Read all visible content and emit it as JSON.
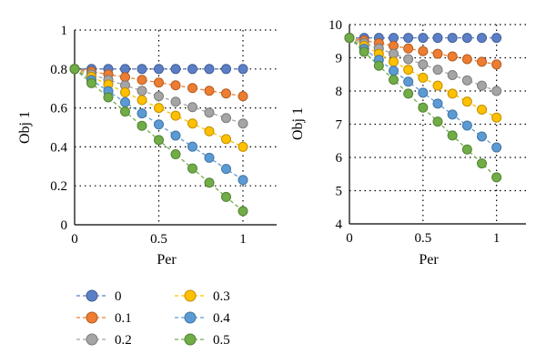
{
  "legend": {
    "placement": "bottom-left",
    "items": [
      {
        "label": "0",
        "color": "#5b7fc7"
      },
      {
        "label": "0.1",
        "color": "#ed7d31"
      },
      {
        "label": "0.2",
        "color": "#a5a5a5"
      },
      {
        "label": "0.3",
        "color": "#ffc000"
      },
      {
        "label": "0.4",
        "color": "#5b9bd5"
      },
      {
        "label": "0.5",
        "color": "#70ad47"
      }
    ]
  },
  "chart_data": [
    {
      "type": "line",
      "xlabel": "Per",
      "ylabel": "Obj 1",
      "xlim": [
        0,
        1.2
      ],
      "ylim": [
        0,
        1
      ],
      "xticks": [
        "0",
        "0.5",
        "1"
      ],
      "xtick_values": [
        0,
        0.5,
        1
      ],
      "yticks": [
        "0",
        "0.2",
        "0.4",
        "0.6",
        "0.8",
        "1"
      ],
      "ytick_values": [
        0,
        0.2,
        0.4,
        0.6,
        0.8,
        1
      ],
      "grid": "dotted",
      "x": [
        0,
        0.1,
        0.2,
        0.3,
        0.4,
        0.5,
        0.6,
        0.7,
        0.8,
        0.9,
        1
      ],
      "series": [
        {
          "name": "0",
          "values": [
            0.8,
            0.8,
            0.8,
            0.8,
            0.8,
            0.8,
            0.8,
            0.8,
            0.8,
            0.8,
            0.8
          ]
        },
        {
          "name": "0.1",
          "values": [
            0.8,
            0.786,
            0.772,
            0.758,
            0.744,
            0.73,
            0.716,
            0.702,
            0.688,
            0.674,
            0.66
          ]
        },
        {
          "name": "0.2",
          "values": [
            0.8,
            0.772,
            0.744,
            0.716,
            0.688,
            0.66,
            0.632,
            0.604,
            0.576,
            0.548,
            0.52
          ]
        },
        {
          "name": "0.3",
          "values": [
            0.8,
            0.76,
            0.72,
            0.68,
            0.64,
            0.6,
            0.56,
            0.52,
            0.48,
            0.44,
            0.4
          ]
        },
        {
          "name": "0.4",
          "values": [
            0.8,
            0.743,
            0.686,
            0.629,
            0.572,
            0.515,
            0.458,
            0.401,
            0.344,
            0.287,
            0.23
          ]
        },
        {
          "name": "0.5",
          "values": [
            0.8,
            0.727,
            0.654,
            0.581,
            0.508,
            0.435,
            0.362,
            0.289,
            0.216,
            0.143,
            0.07
          ]
        }
      ]
    },
    {
      "type": "line",
      "xlabel": "Per",
      "ylabel": "Obj 1",
      "xlim": [
        0,
        1.2
      ],
      "ylim": [
        4,
        10
      ],
      "xticks": [
        "0",
        "0.5",
        "1"
      ],
      "xtick_values": [
        0,
        0.5,
        1
      ],
      "yticks": [
        "4",
        "5",
        "6",
        "7",
        "8",
        "9",
        "10"
      ],
      "ytick_values": [
        4,
        5,
        6,
        7,
        8,
        9,
        10
      ],
      "grid": "dotted",
      "x": [
        0,
        0.1,
        0.2,
        0.3,
        0.4,
        0.5,
        0.6,
        0.7,
        0.8,
        0.9,
        1
      ],
      "series": [
        {
          "name": "0",
          "values": [
            9.6,
            9.6,
            9.6,
            9.6,
            9.6,
            9.6,
            9.6,
            9.6,
            9.6,
            9.6,
            9.6
          ]
        },
        {
          "name": "0.1",
          "values": [
            9.6,
            9.52,
            9.44,
            9.36,
            9.28,
            9.2,
            9.12,
            9.04,
            8.96,
            8.88,
            8.8
          ]
        },
        {
          "name": "0.2",
          "values": [
            9.6,
            9.44,
            9.28,
            9.12,
            8.96,
            8.8,
            8.64,
            8.48,
            8.32,
            8.16,
            8.0
          ]
        },
        {
          "name": "0.3",
          "values": [
            9.6,
            9.36,
            9.12,
            8.88,
            8.64,
            8.4,
            8.16,
            7.92,
            7.68,
            7.44,
            7.2
          ]
        },
        {
          "name": "0.4",
          "values": [
            9.6,
            9.27,
            8.94,
            8.61,
            8.28,
            7.95,
            7.62,
            7.29,
            6.96,
            6.63,
            6.3
          ]
        },
        {
          "name": "0.5",
          "values": [
            9.6,
            9.18,
            8.76,
            8.34,
            7.92,
            7.5,
            7.08,
            6.66,
            6.24,
            5.82,
            5.4
          ]
        }
      ]
    }
  ]
}
